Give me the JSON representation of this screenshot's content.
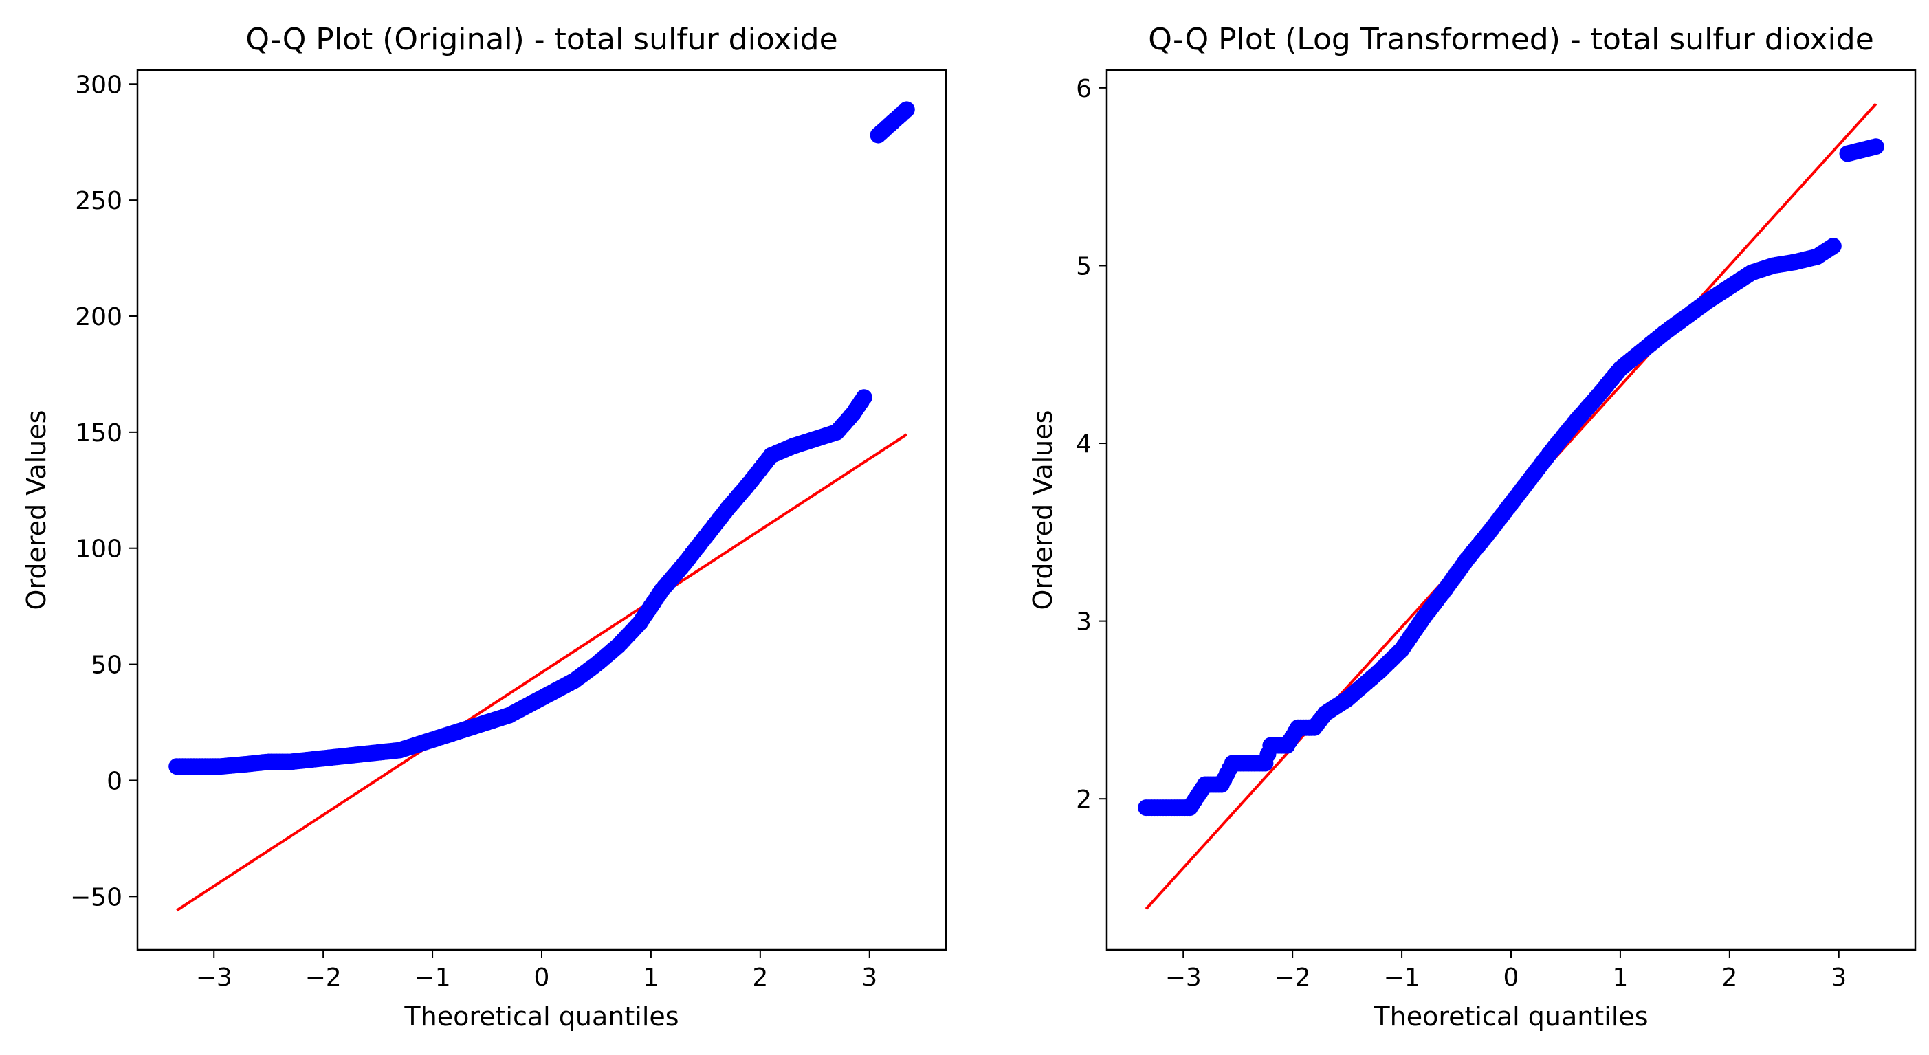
{
  "chart_data": [
    {
      "type": "scatter",
      "title": "Q-Q Plot (Original) - total sulfur dioxide",
      "xlabel": "Theoretical quantiles",
      "ylabel": "Ordered Values",
      "xlim": [
        -3.7,
        3.7
      ],
      "ylim": [
        -73,
        306
      ],
      "xticks": [
        -3,
        -2,
        -1,
        0,
        1,
        2,
        3
      ],
      "xtick_labels": [
        "−3",
        "−2",
        "−1",
        "0",
        "1",
        "2",
        "3"
      ],
      "yticks": [
        -50,
        0,
        50,
        100,
        150,
        200,
        250,
        300
      ],
      "ytick_labels": [
        "−50",
        "0",
        "50",
        "100",
        "150",
        "200",
        "250",
        "300"
      ],
      "grid": false,
      "series": [
        {
          "kind": "points",
          "color": "#0000ff",
          "x": [
            -3.34,
            -3.08,
            -2.94,
            -2.7,
            -2.5,
            -2.3,
            -2.1,
            -1.9,
            -1.7,
            -1.5,
            -1.3,
            -1.1,
            -0.9,
            -0.7,
            -0.5,
            -0.3,
            -0.1,
            0.1,
            0.3,
            0.5,
            0.7,
            0.9,
            1.1,
            1.3,
            1.5,
            1.7,
            1.9,
            2.1,
            2.3,
            2.5,
            2.7,
            2.85,
            2.95,
            3.08,
            3.34
          ],
          "y": [
            6,
            6,
            6,
            7,
            8,
            8,
            9,
            10,
            11,
            12,
            13,
            16,
            19,
            22,
            25,
            28,
            33,
            38,
            43,
            50,
            58,
            68,
            82,
            93,
            105,
            117,
            128,
            140,
            144,
            147,
            150,
            158,
            165,
            278,
            289
          ]
        },
        {
          "kind": "fit-line",
          "color": "#ff0000",
          "x": [
            -3.34,
            3.34
          ],
          "y": [
            -56,
            149
          ]
        }
      ]
    },
    {
      "type": "scatter",
      "title": "Q-Q Plot (Log Transformed) - total sulfur dioxide",
      "xlabel": "Theoretical quantiles",
      "ylabel": "Ordered Values",
      "xlim": [
        -3.7,
        3.7
      ],
      "ylim": [
        1.15,
        6.1
      ],
      "xticks": [
        -3,
        -2,
        -1,
        0,
        1,
        2,
        3
      ],
      "xtick_labels": [
        "−3",
        "−2",
        "−1",
        "0",
        "1",
        "2",
        "3"
      ],
      "yticks": [
        2,
        3,
        4,
        5,
        6
      ],
      "ytick_labels": [
        "2",
        "3",
        "4",
        "5",
        "6"
      ],
      "grid": false,
      "series": [
        {
          "kind": "points",
          "color": "#0000ff",
          "x": [
            -3.34,
            -3.08,
            -2.94,
            -2.8,
            -2.65,
            -2.55,
            -2.4,
            -2.25,
            -2.2,
            -2.05,
            -1.95,
            -1.8,
            -1.7,
            -1.5,
            -1.35,
            -1.2,
            -1.0,
            -0.8,
            -0.6,
            -0.4,
            -0.2,
            0.0,
            0.2,
            0.4,
            0.6,
            0.8,
            1.0,
            1.2,
            1.4,
            1.6,
            1.8,
            2.0,
            2.2,
            2.4,
            2.6,
            2.8,
            2.95,
            3.08,
            3.34
          ],
          "y": [
            1.95,
            1.95,
            1.95,
            2.08,
            2.08,
            2.2,
            2.2,
            2.2,
            2.3,
            2.3,
            2.4,
            2.4,
            2.48,
            2.56,
            2.64,
            2.72,
            2.84,
            3.02,
            3.18,
            3.35,
            3.5,
            3.66,
            3.82,
            3.98,
            4.13,
            4.27,
            4.42,
            4.52,
            4.62,
            4.71,
            4.8,
            4.88,
            4.96,
            5.0,
            5.02,
            5.05,
            5.11,
            5.63,
            5.67
          ]
        },
        {
          "kind": "fit-line",
          "color": "#ff0000",
          "x": [
            -3.34,
            3.34
          ],
          "y": [
            1.38,
            5.91
          ]
        }
      ]
    }
  ]
}
